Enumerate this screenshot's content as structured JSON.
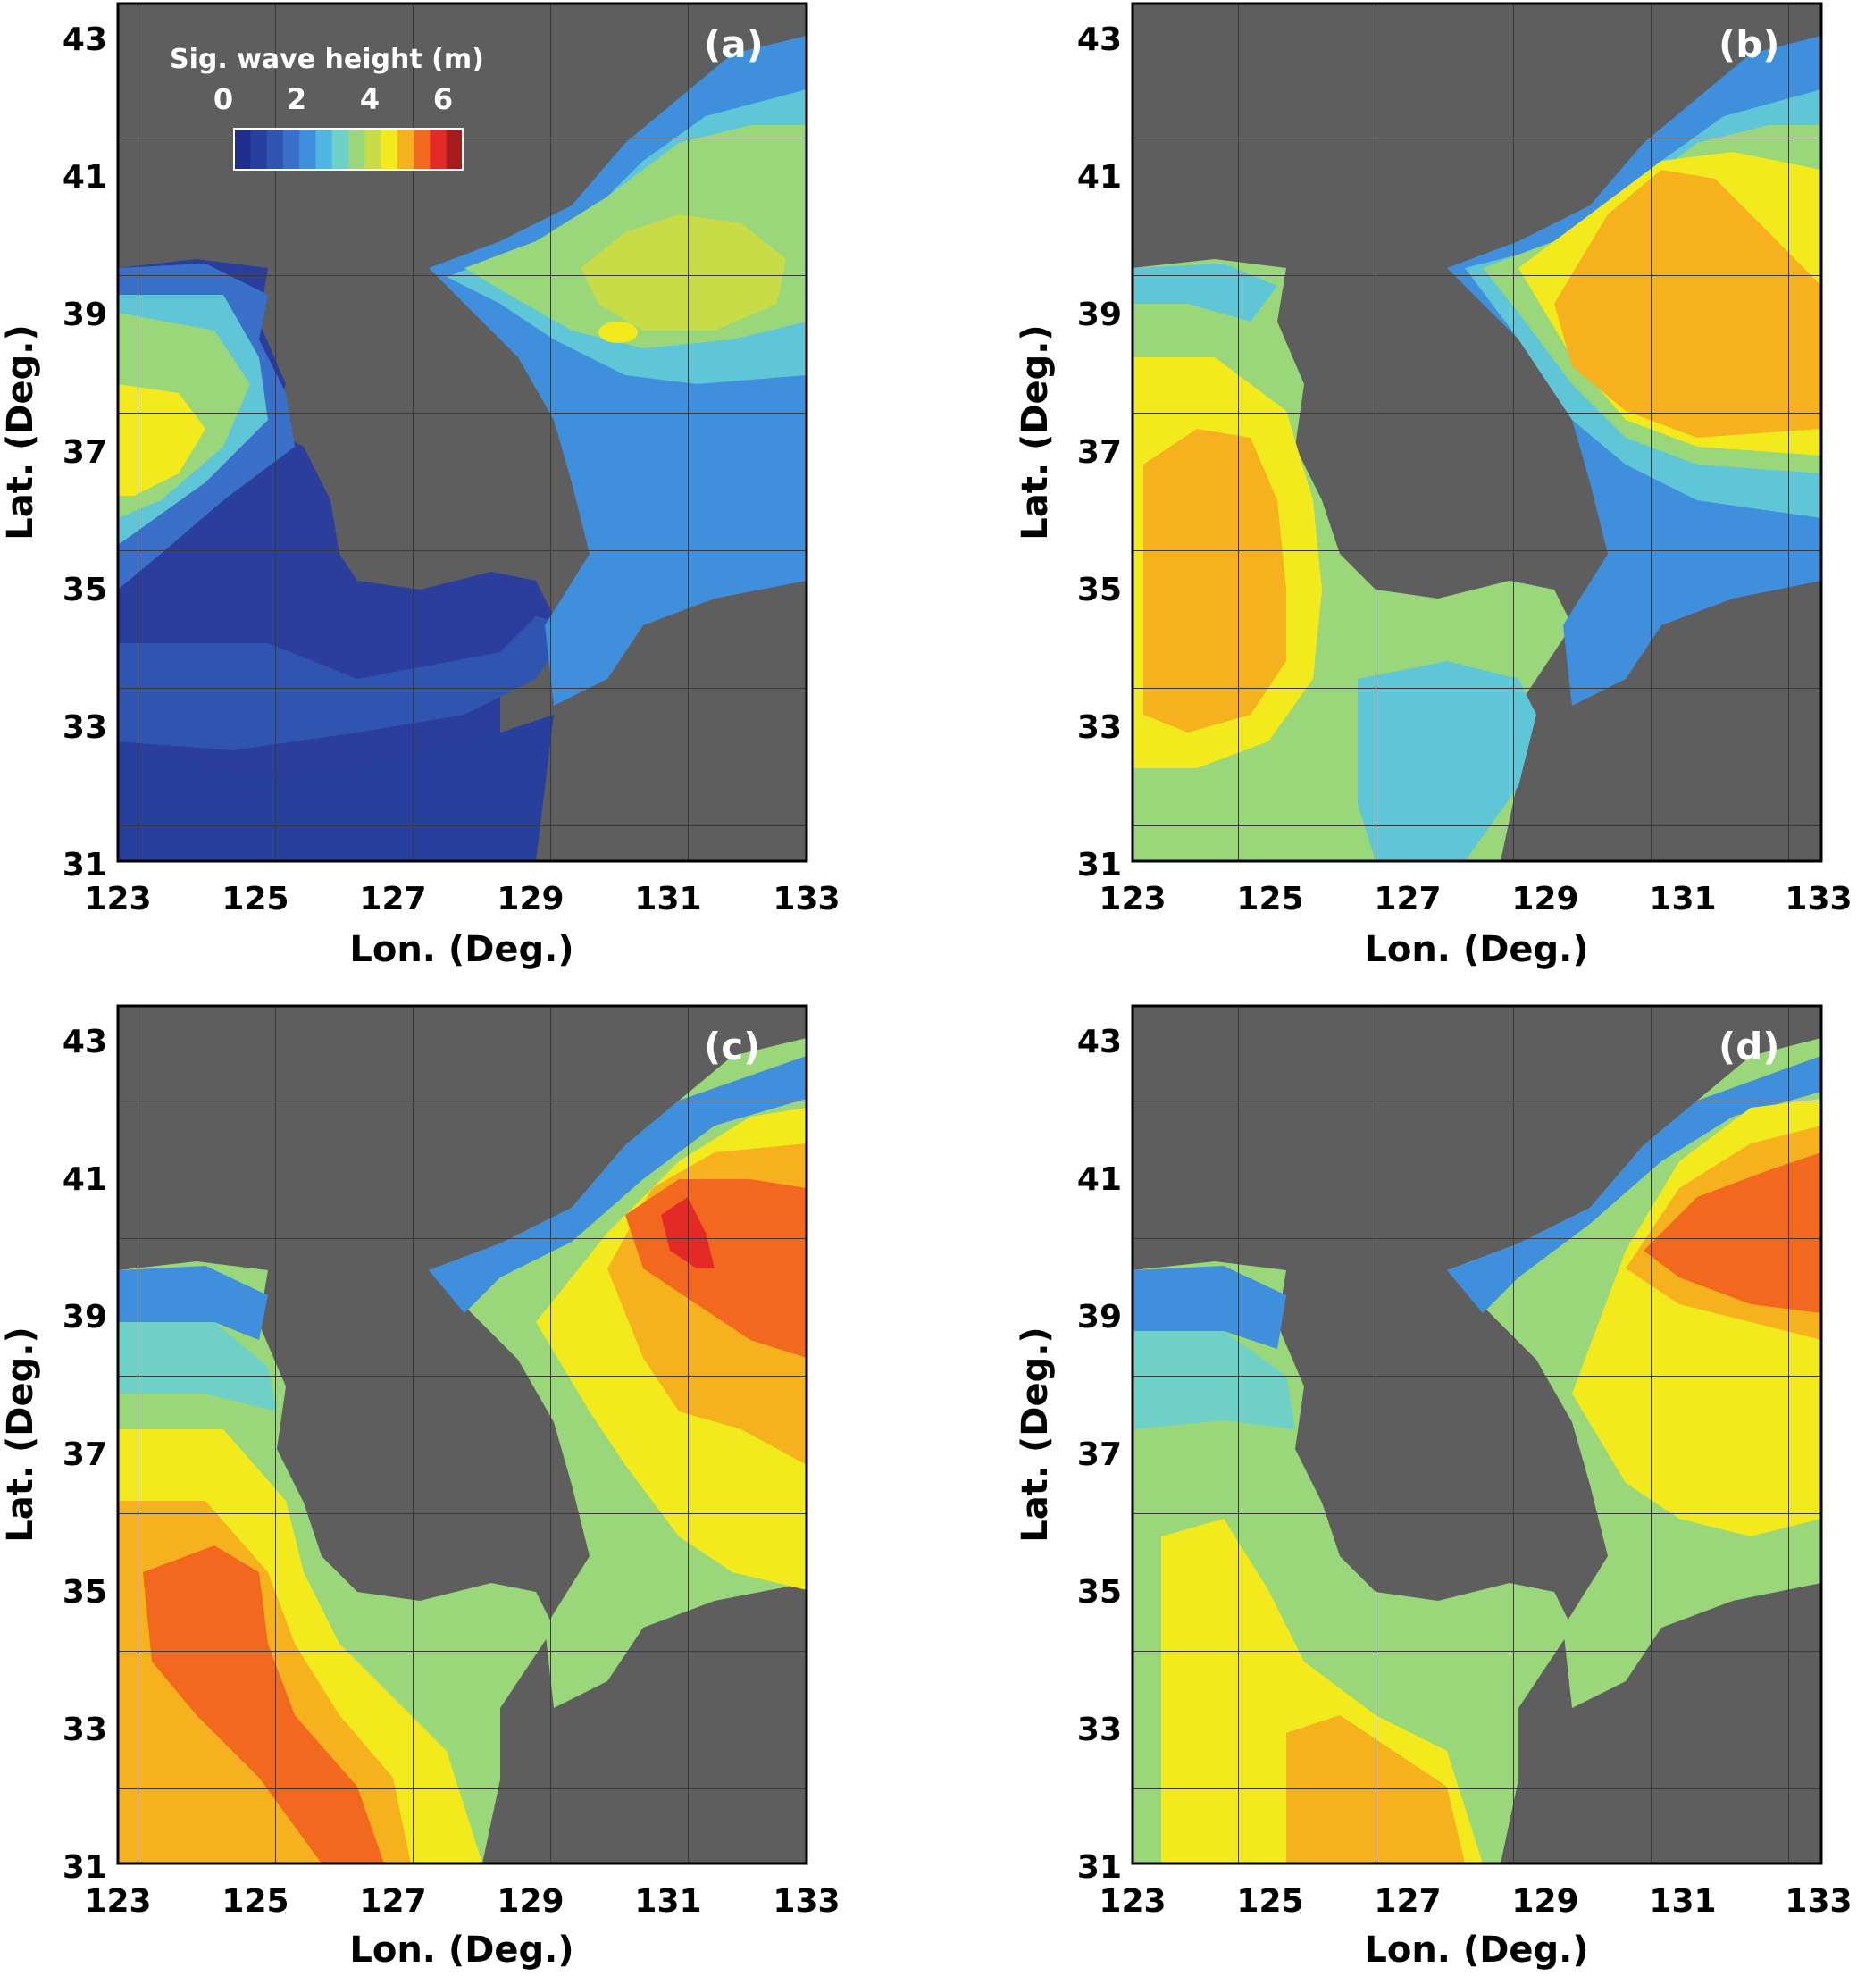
{
  "figure": {
    "colorbar": {
      "title": "Sig. wave height (m)",
      "ticks": [
        "0",
        "2",
        "4",
        "6"
      ],
      "colors": [
        "#1f2e8c",
        "#27409e",
        "#2f55b0",
        "#3a6fca",
        "#3f8fdc",
        "#4fb6e0",
        "#6fd0c8",
        "#9ad67a",
        "#c8dc48",
        "#f2ea1c",
        "#f6b21e",
        "#f2681e",
        "#e42a26",
        "#a61c1c"
      ]
    },
    "x_ticks": [
      "123",
      "125",
      "127",
      "129",
      "131",
      "133"
    ],
    "y_ticks": [
      "43",
      "41",
      "39",
      "37",
      "35",
      "33",
      "31"
    ],
    "x_label": "Lon. (Deg.)",
    "y_label": "Lat. (Deg.)",
    "land_color": "#5e5e5e",
    "panels": [
      {
        "label": "(a)"
      },
      {
        "label": "(b)"
      },
      {
        "label": "(c)"
      },
      {
        "label": "(d)"
      }
    ]
  }
}
